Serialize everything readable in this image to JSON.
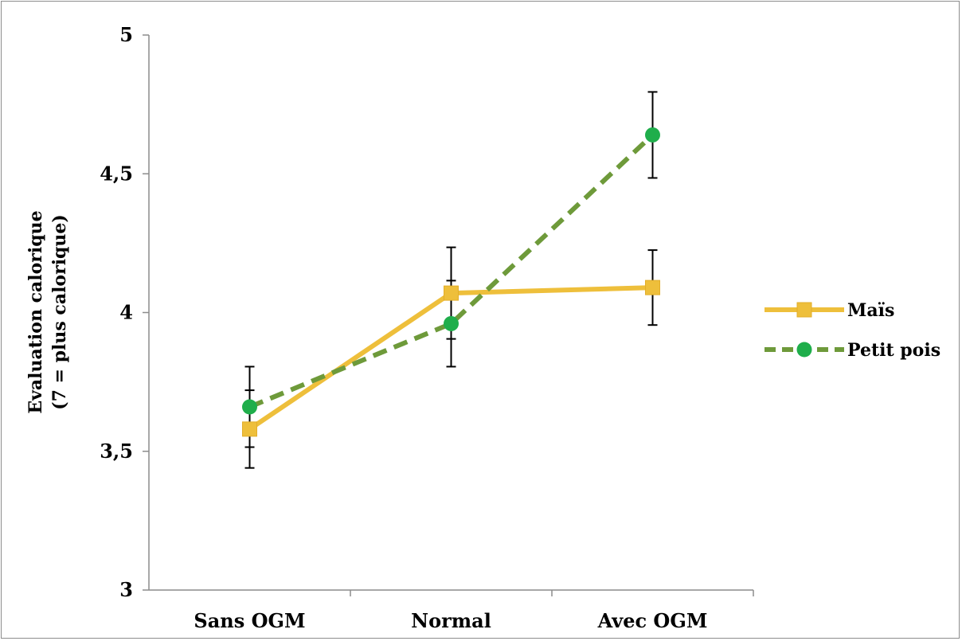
{
  "chart_data": {
    "type": "line",
    "categories": [
      "Sans OGM",
      "Normal",
      "Avec OGM"
    ],
    "ylabel_line1": "Evaluation calorique",
    "ylabel_line2": "(7 = plus calorique)",
    "ylim": [
      3,
      5
    ],
    "yticks": [
      3,
      3.5,
      4,
      4.5,
      5
    ],
    "ytick_labels": [
      "3",
      "3,5",
      "4",
      "4,5",
      "5"
    ],
    "grid": false,
    "legend_position": "right",
    "series": [
      {
        "name": "Maïs",
        "values": [
          3.58,
          4.07,
          4.09
        ],
        "error": [
          0.14,
          0.165,
          0.135
        ],
        "color": "#eebf3b",
        "line_style": "solid",
        "marker": "square"
      },
      {
        "name": "Petit pois",
        "values": [
          3.66,
          3.96,
          4.64
        ],
        "error": [
          0.145,
          0.155,
          0.155
        ],
        "color": "#6e9a3a",
        "marker_color": "#1fae4b",
        "line_style": "dashed",
        "marker": "circle"
      }
    ]
  }
}
